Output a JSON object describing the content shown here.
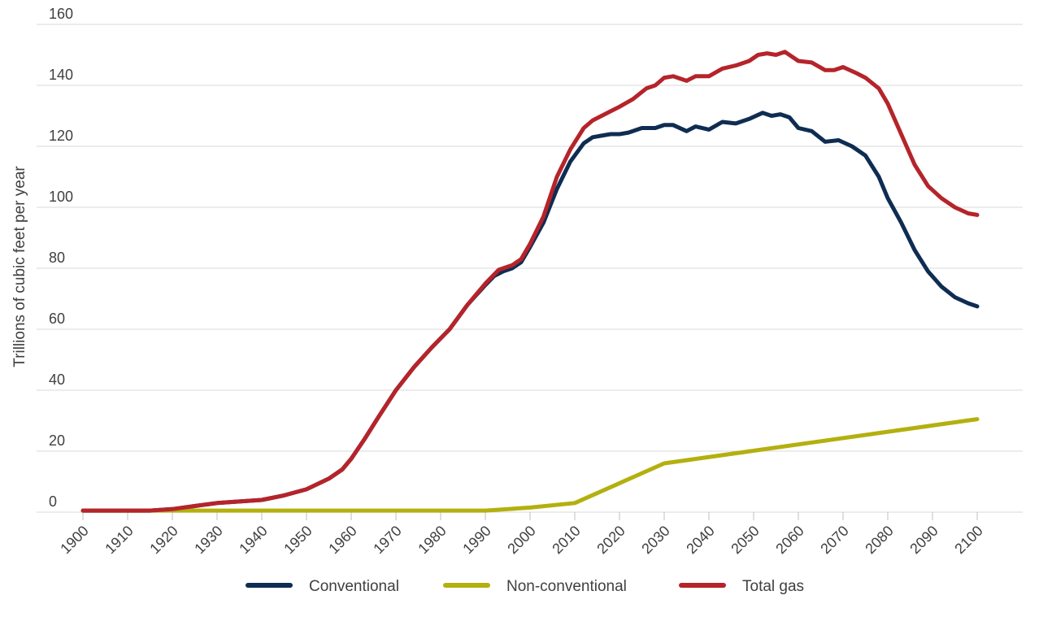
{
  "chart_data": {
    "type": "line",
    "title": "",
    "xlabel": "",
    "ylabel": "Trillions of cubic feet per year",
    "xlim": [
      1900,
      2100
    ],
    "ylim": [
      0,
      160
    ],
    "x_ticks": [
      1900,
      1910,
      1920,
      1930,
      1940,
      1950,
      1960,
      1970,
      1980,
      1990,
      2000,
      2010,
      2020,
      2030,
      2040,
      2050,
      2060,
      2070,
      2080,
      2090,
      2100
    ],
    "y_ticks": [
      0,
      20,
      40,
      60,
      80,
      100,
      120,
      140,
      160
    ],
    "grid": "horizontal",
    "legend_position": "bottom",
    "series": [
      {
        "name": "Conventional",
        "color": "#0f2d52",
        "points": [
          [
            1900,
            0.5
          ],
          [
            1905,
            0.5
          ],
          [
            1910,
            0.5
          ],
          [
            1915,
            0.5
          ],
          [
            1920,
            1
          ],
          [
            1925,
            2
          ],
          [
            1930,
            3
          ],
          [
            1935,
            3.5
          ],
          [
            1940,
            4
          ],
          [
            1945,
            5.5
          ],
          [
            1950,
            7.5
          ],
          [
            1955,
            11
          ],
          [
            1958,
            14
          ],
          [
            1960,
            17.5
          ],
          [
            1963,
            24
          ],
          [
            1966,
            31
          ],
          [
            1970,
            40
          ],
          [
            1974,
            47.5
          ],
          [
            1978,
            54
          ],
          [
            1982,
            60
          ],
          [
            1986,
            68
          ],
          [
            1990,
            74.5
          ],
          [
            1992,
            77.5
          ],
          [
            1994,
            79
          ],
          [
            1996,
            80
          ],
          [
            1998,
            82
          ],
          [
            2000,
            87
          ],
          [
            2003,
            95
          ],
          [
            2006,
            106
          ],
          [
            2009,
            115
          ],
          [
            2012,
            121
          ],
          [
            2014,
            123
          ],
          [
            2016,
            123.5
          ],
          [
            2018,
            124
          ],
          [
            2020,
            124
          ],
          [
            2022,
            124.5
          ],
          [
            2025,
            126
          ],
          [
            2028,
            126
          ],
          [
            2030,
            127
          ],
          [
            2032,
            127
          ],
          [
            2035,
            125
          ],
          [
            2037,
            126.5
          ],
          [
            2040,
            125.5
          ],
          [
            2043,
            128
          ],
          [
            2046,
            127.5
          ],
          [
            2049,
            129
          ],
          [
            2052,
            131
          ],
          [
            2054,
            130
          ],
          [
            2056,
            130.5
          ],
          [
            2058,
            129.5
          ],
          [
            2060,
            126
          ],
          [
            2063,
            125
          ],
          [
            2066,
            121.5
          ],
          [
            2069,
            122
          ],
          [
            2072,
            120
          ],
          [
            2075,
            117
          ],
          [
            2078,
            110
          ],
          [
            2080,
            103
          ],
          [
            2083,
            95
          ],
          [
            2086,
            86
          ],
          [
            2089,
            79
          ],
          [
            2092,
            74
          ],
          [
            2095,
            70.5
          ],
          [
            2098,
            68.5
          ],
          [
            2100,
            67.5
          ]
        ]
      },
      {
        "name": "Non-conventional",
        "color": "#b3b00f",
        "points": [
          [
            1900,
            0.5
          ],
          [
            1990,
            0.5
          ],
          [
            2000,
            1.5
          ],
          [
            2010,
            3
          ],
          [
            2030,
            16
          ],
          [
            2100,
            30.5
          ]
        ]
      },
      {
        "name": "Total gas",
        "color": "#b5242a",
        "points": [
          [
            1900,
            0.5
          ],
          [
            1905,
            0.5
          ],
          [
            1910,
            0.5
          ],
          [
            1915,
            0.5
          ],
          [
            1920,
            1
          ],
          [
            1925,
            2
          ],
          [
            1930,
            3
          ],
          [
            1935,
            3.5
          ],
          [
            1940,
            4
          ],
          [
            1945,
            5.5
          ],
          [
            1950,
            7.5
          ],
          [
            1955,
            11
          ],
          [
            1958,
            14
          ],
          [
            1960,
            17.5
          ],
          [
            1963,
            24
          ],
          [
            1966,
            31
          ],
          [
            1970,
            40
          ],
          [
            1974,
            47.5
          ],
          [
            1978,
            54
          ],
          [
            1982,
            60
          ],
          [
            1986,
            68
          ],
          [
            1990,
            75
          ],
          [
            1993,
            79.5
          ],
          [
            1996,
            81
          ],
          [
            1998,
            83
          ],
          [
            2000,
            88
          ],
          [
            2003,
            97
          ],
          [
            2006,
            110
          ],
          [
            2009,
            119
          ],
          [
            2012,
            126
          ],
          [
            2014,
            128.5
          ],
          [
            2016,
            130
          ],
          [
            2018,
            131.5
          ],
          [
            2020,
            133
          ],
          [
            2023,
            135.5
          ],
          [
            2026,
            139
          ],
          [
            2028,
            140
          ],
          [
            2030,
            142.5
          ],
          [
            2032,
            143
          ],
          [
            2035,
            141.5
          ],
          [
            2037,
            143
          ],
          [
            2040,
            143
          ],
          [
            2043,
            145.5
          ],
          [
            2046,
            146.5
          ],
          [
            2049,
            148
          ],
          [
            2051,
            150
          ],
          [
            2053,
            150.5
          ],
          [
            2055,
            150
          ],
          [
            2057,
            151
          ],
          [
            2060,
            148
          ],
          [
            2063,
            147.5
          ],
          [
            2066,
            145
          ],
          [
            2068,
            145
          ],
          [
            2070,
            146
          ],
          [
            2073,
            144
          ],
          [
            2075,
            142.5
          ],
          [
            2078,
            139
          ],
          [
            2080,
            134
          ],
          [
            2083,
            124
          ],
          [
            2086,
            114
          ],
          [
            2089,
            107
          ],
          [
            2092,
            103
          ],
          [
            2095,
            100
          ],
          [
            2098,
            98
          ],
          [
            2100,
            97.5
          ]
        ]
      }
    ]
  }
}
